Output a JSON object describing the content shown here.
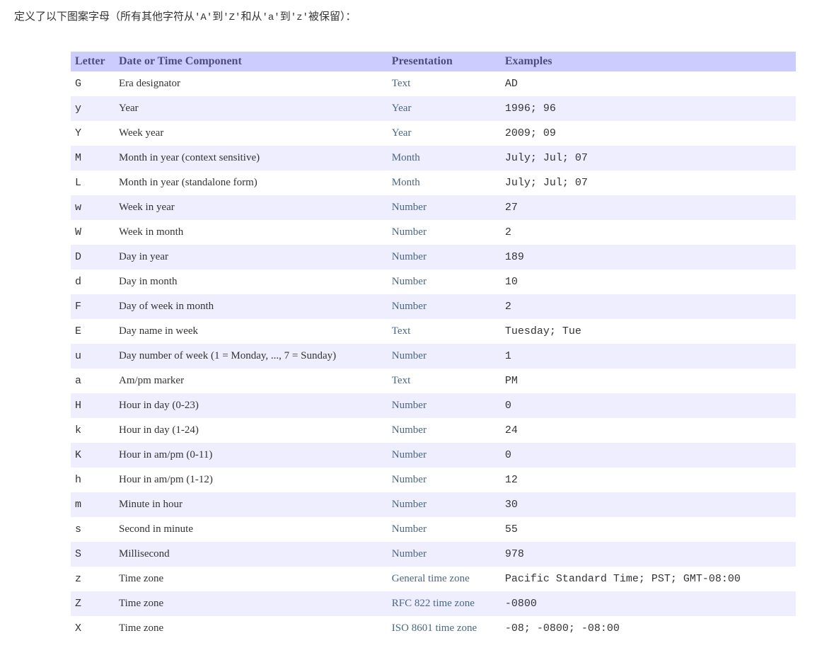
{
  "intro": {
    "prefix": "定义了以下图案字母（所有其他字符从",
    "code1": "'A'",
    "mid1": "到",
    "code2": "'Z'",
    "mid2": "和从",
    "code3": "'a'",
    "mid3": "到",
    "code4": "'z'",
    "suffix": "被保留）："
  },
  "table": {
    "headers": {
      "letter": "Letter",
      "component": "Date or Time Component",
      "presentation": "Presentation",
      "examples": "Examples"
    },
    "rows": [
      {
        "letter": "G",
        "component": "Era designator",
        "presentation": "Text",
        "examples": "AD"
      },
      {
        "letter": "y",
        "component": "Year",
        "presentation": "Year",
        "examples": "1996; 96"
      },
      {
        "letter": "Y",
        "component": "Week year",
        "presentation": "Year",
        "examples": "2009; 09"
      },
      {
        "letter": "M",
        "component": "Month in year (context sensitive)",
        "presentation": "Month",
        "examples": "July; Jul; 07"
      },
      {
        "letter": "L",
        "component": "Month in year (standalone form)",
        "presentation": "Month",
        "examples": "July; Jul; 07"
      },
      {
        "letter": "w",
        "component": "Week in year",
        "presentation": "Number",
        "examples": "27"
      },
      {
        "letter": "W",
        "component": "Week in month",
        "presentation": "Number",
        "examples": "2"
      },
      {
        "letter": "D",
        "component": "Day in year",
        "presentation": "Number",
        "examples": "189"
      },
      {
        "letter": "d",
        "component": "Day in month",
        "presentation": "Number",
        "examples": "10"
      },
      {
        "letter": "F",
        "component": "Day of week in month",
        "presentation": "Number",
        "examples": "2"
      },
      {
        "letter": "E",
        "component": "Day name in week",
        "presentation": "Text",
        "examples": "Tuesday; Tue"
      },
      {
        "letter": "u",
        "component": "Day number of week (1 = Monday, ..., 7 = Sunday)",
        "presentation": "Number",
        "examples": "1"
      },
      {
        "letter": "a",
        "component": "Am/pm marker",
        "presentation": "Text",
        "examples": "PM"
      },
      {
        "letter": "H",
        "component": "Hour in day (0-23)",
        "presentation": "Number",
        "examples": "0"
      },
      {
        "letter": "k",
        "component": "Hour in day (1-24)",
        "presentation": "Number",
        "examples": "24"
      },
      {
        "letter": "K",
        "component": "Hour in am/pm (0-11)",
        "presentation": "Number",
        "examples": "0"
      },
      {
        "letter": "h",
        "component": "Hour in am/pm (1-12)",
        "presentation": "Number",
        "examples": "12"
      },
      {
        "letter": "m",
        "component": "Minute in hour",
        "presentation": "Number",
        "examples": "30"
      },
      {
        "letter": "s",
        "component": "Second in minute",
        "presentation": "Number",
        "examples": "55"
      },
      {
        "letter": "S",
        "component": "Millisecond",
        "presentation": "Number",
        "examples": "978"
      },
      {
        "letter": "z",
        "component": "Time zone",
        "presentation": "General time zone",
        "examples": "Pacific Standard Time; PST; GMT-08:00"
      },
      {
        "letter": "Z",
        "component": "Time zone",
        "presentation": "RFC 822 time zone",
        "examples": "-0800"
      },
      {
        "letter": "X",
        "component": "Time zone",
        "presentation": "ISO 8601 time zone",
        "examples": "-08; -0800; -08:00"
      }
    ]
  },
  "styles": {
    "header_bg": "#ccccff",
    "header_text": "#504d7c",
    "row_even_bg": "#eeeeff",
    "row_odd_bg": "#ffffff",
    "link_color": "#4a6782",
    "body_text": "#333333"
  }
}
